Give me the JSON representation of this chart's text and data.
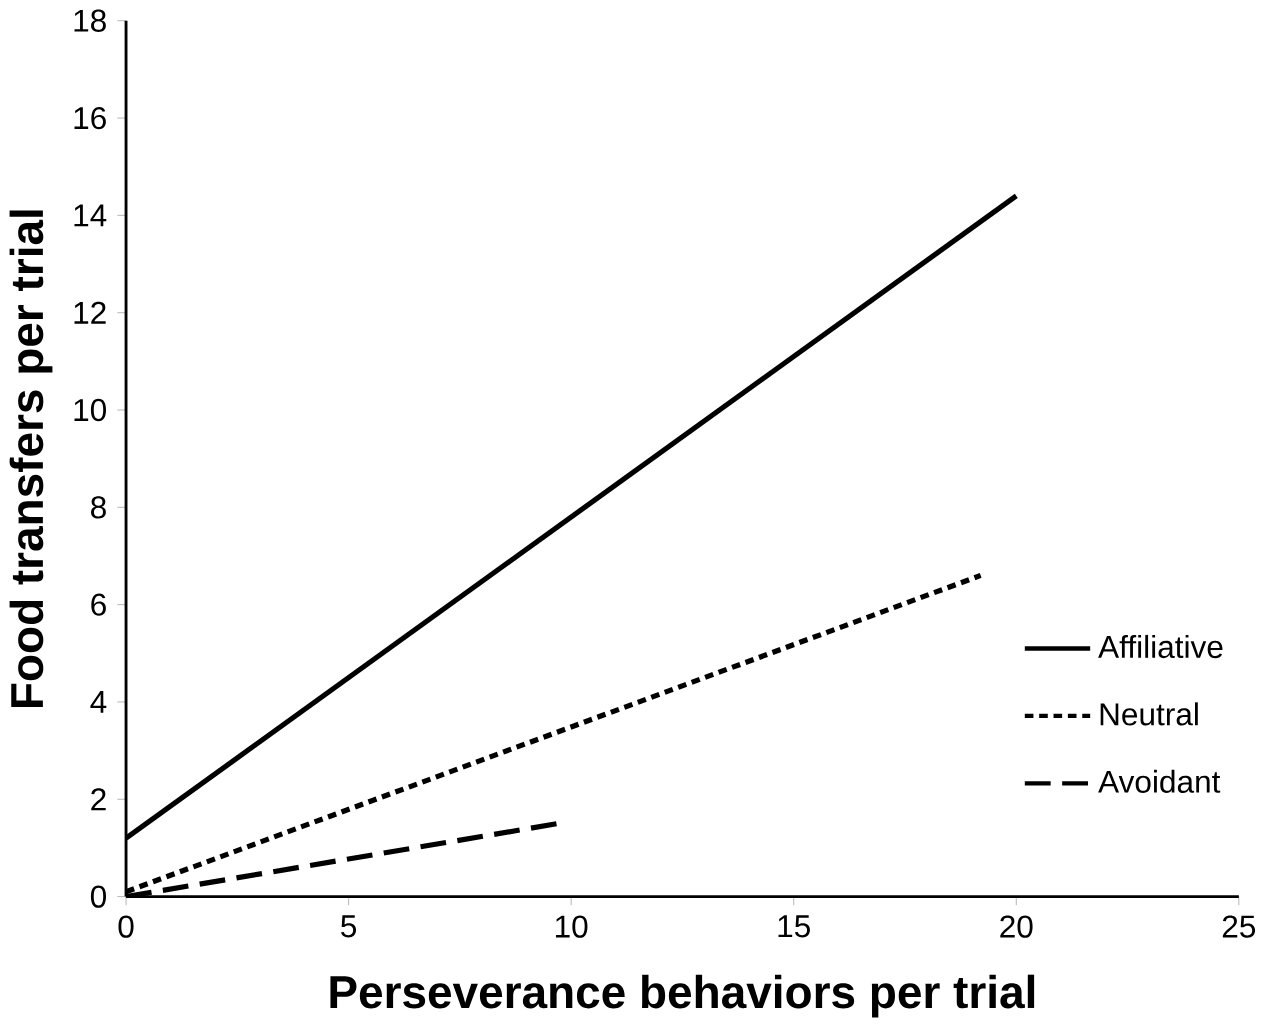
{
  "chart_data": {
    "type": "line",
    "xlabel": "Perseverance behaviors  per trial",
    "ylabel": "Food transfers per trial",
    "xlim": [
      0,
      25
    ],
    "xticks": [
      0,
      5,
      10,
      15,
      20,
      25
    ],
    "ylim": [
      0,
      18
    ],
    "yticks": [
      0,
      2,
      4,
      6,
      8,
      10,
      12,
      14,
      16,
      18
    ],
    "series": [
      {
        "name": "Affiliative",
        "color": "#000000",
        "line_style": "solid",
        "x": [
          0,
          20
        ],
        "values": [
          1.2,
          14.4
        ]
      },
      {
        "name": "Neutral",
        "color": "#000000",
        "line_style": "dotted",
        "x": [
          0,
          19.2
        ],
        "values": [
          0.1,
          6.6
        ]
      },
      {
        "name": "Avoidant",
        "color": "#000000",
        "line_style": "dashed",
        "x": [
          0,
          9.7
        ],
        "values": [
          0,
          1.5
        ]
      }
    ],
    "legend": "right",
    "grid": false,
    "marker": "none"
  }
}
